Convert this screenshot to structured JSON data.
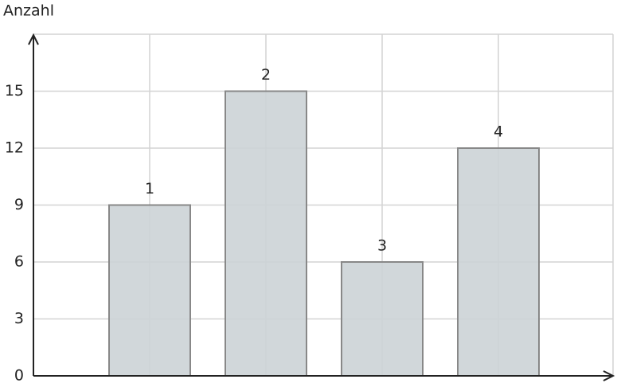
{
  "chart_data": {
    "type": "bar",
    "y_label": "Anzahl",
    "categories": [
      "1",
      "2",
      "3",
      "4"
    ],
    "values": [
      9,
      15,
      6,
      12
    ],
    "color": "#ccd3d6",
    "edge_color": "#888888",
    "ylim": [
      0,
      18
    ],
    "yticks": [
      0,
      3,
      6,
      9,
      12,
      15
    ],
    "grid": true
  }
}
